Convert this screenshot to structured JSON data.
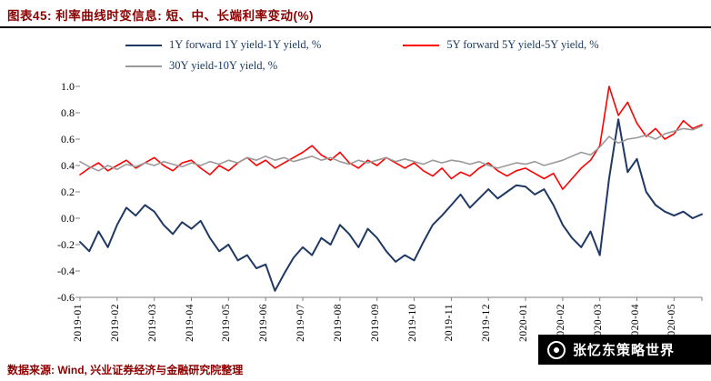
{
  "header": {
    "title": "图表45: 利率曲线时变信息: 短、中、长端利率变动(%)"
  },
  "footer": {
    "source": "数据来源: Wind, 兴业证券经济与金融研究院整理"
  },
  "watermark": {
    "text": "张忆东策略世界"
  },
  "chart_data": {
    "type": "line",
    "title": "利率曲线时变信息: 短、中、长端利率变动(%)",
    "xlabel": "",
    "ylabel": "",
    "ylim": [
      -0.6,
      1.0
    ],
    "yticks": [
      1.0,
      0.8,
      0.6,
      0.4,
      0.2,
      0.0,
      -0.2,
      -0.4,
      -0.6
    ],
    "grid": false,
    "legend_position": "top",
    "points_per_category": 4,
    "categories": [
      "2019-01",
      "2019-02",
      "2019-03",
      "2019-04",
      "2019-05",
      "2019-06",
      "2019-07",
      "2019-08",
      "2019-09",
      "2019-10",
      "2019-11",
      "2019-12",
      "2020-01",
      "2020-02",
      "2020-03",
      "2020-04",
      "2020-05"
    ],
    "series": [
      {
        "name": "1Y forward 1Y yield-1Y yield, %",
        "color": "#1F3864",
        "width": 2,
        "values": [
          -0.18,
          -0.25,
          -0.1,
          -0.22,
          -0.05,
          0.08,
          0.02,
          0.1,
          0.05,
          -0.05,
          -0.12,
          -0.03,
          -0.08,
          -0.02,
          -0.15,
          -0.25,
          -0.2,
          -0.32,
          -0.28,
          -0.38,
          -0.35,
          -0.55,
          -0.42,
          -0.3,
          -0.22,
          -0.28,
          -0.15,
          -0.2,
          -0.05,
          -0.12,
          -0.22,
          -0.08,
          -0.15,
          -0.25,
          -0.33,
          -0.28,
          -0.32,
          -0.18,
          -0.05,
          0.02,
          0.1,
          0.18,
          0.08,
          0.15,
          0.22,
          0.15,
          0.2,
          0.25,
          0.24,
          0.18,
          0.22,
          0.1,
          -0.05,
          -0.15,
          -0.22,
          -0.1,
          -0.28,
          0.3,
          0.75,
          0.35,
          0.45,
          0.2,
          0.1,
          0.05,
          0.02,
          0.05,
          0.0,
          0.03
        ]
      },
      {
        "name": "5Y forward 5Y yield-5Y yield, %",
        "color": "#FF0000",
        "width": 1.6,
        "values": [
          0.33,
          0.38,
          0.42,
          0.36,
          0.4,
          0.44,
          0.38,
          0.42,
          0.46,
          0.4,
          0.36,
          0.42,
          0.44,
          0.38,
          0.33,
          0.4,
          0.36,
          0.42,
          0.46,
          0.4,
          0.44,
          0.38,
          0.42,
          0.46,
          0.5,
          0.55,
          0.48,
          0.44,
          0.5,
          0.42,
          0.38,
          0.44,
          0.4,
          0.46,
          0.42,
          0.38,
          0.42,
          0.36,
          0.32,
          0.38,
          0.3,
          0.35,
          0.32,
          0.38,
          0.42,
          0.36,
          0.32,
          0.36,
          0.38,
          0.34,
          0.3,
          0.34,
          0.22,
          0.3,
          0.38,
          0.44,
          0.55,
          1.0,
          0.78,
          0.88,
          0.72,
          0.62,
          0.68,
          0.6,
          0.64,
          0.74,
          0.68,
          0.71
        ]
      },
      {
        "name": "30Y yield-10Y yield, %",
        "color": "#9A9A9A",
        "width": 1.6,
        "values": [
          0.43,
          0.39,
          0.36,
          0.4,
          0.37,
          0.41,
          0.39,
          0.42,
          0.4,
          0.43,
          0.41,
          0.39,
          0.42,
          0.4,
          0.43,
          0.41,
          0.44,
          0.42,
          0.46,
          0.44,
          0.47,
          0.44,
          0.46,
          0.43,
          0.45,
          0.47,
          0.44,
          0.46,
          0.43,
          0.41,
          0.44,
          0.42,
          0.44,
          0.46,
          0.43,
          0.45,
          0.43,
          0.41,
          0.44,
          0.42,
          0.44,
          0.43,
          0.41,
          0.43,
          0.4,
          0.38,
          0.4,
          0.42,
          0.41,
          0.43,
          0.4,
          0.42,
          0.44,
          0.47,
          0.5,
          0.48,
          0.54,
          0.62,
          0.57,
          0.6,
          0.61,
          0.63,
          0.6,
          0.64,
          0.66,
          0.68,
          0.67,
          0.7
        ]
      }
    ]
  }
}
